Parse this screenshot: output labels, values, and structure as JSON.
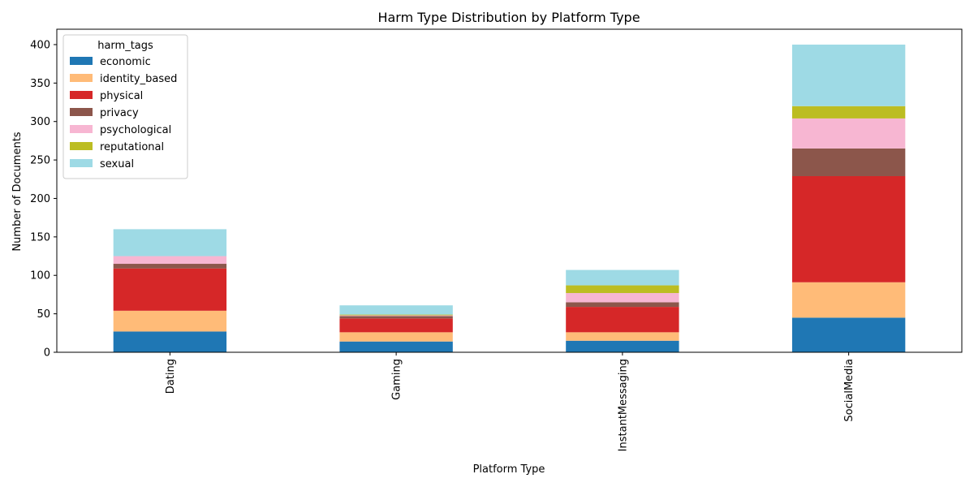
{
  "chart_data": {
    "type": "bar",
    "stacked": true,
    "title": "Harm Type Distribution by Platform Type",
    "xlabel": "Platform Type",
    "ylabel": "Number of Documents",
    "ylim": [
      0,
      420
    ],
    "yticks": [
      0,
      50,
      100,
      150,
      200,
      250,
      300,
      350,
      400
    ],
    "grid": false,
    "legend": {
      "title": "harm_tags",
      "placement": "top-left"
    },
    "categories": [
      "Dating",
      "Gaming",
      "InstantMessaging",
      "SocialMedia"
    ],
    "series": [
      {
        "name": "economic",
        "color": "#1f77b4",
        "values": [
          27,
          14,
          15,
          45
        ]
      },
      {
        "name": "identity_based",
        "color": "#ffbb78",
        "values": [
          27,
          12,
          11,
          46
        ]
      },
      {
        "name": "physical",
        "color": "#d62728",
        "values": [
          55,
          18,
          33,
          138
        ]
      },
      {
        "name": "privacy",
        "color": "#8c564b",
        "values": [
          6,
          3,
          6,
          36
        ]
      },
      {
        "name": "psychological",
        "color": "#f7b6d2",
        "values": [
          10,
          1,
          12,
          39
        ]
      },
      {
        "name": "reputational",
        "color": "#bcbd22",
        "values": [
          0,
          1,
          10,
          16
        ]
      },
      {
        "name": "sexual",
        "color": "#9edae5",
        "values": [
          35,
          12,
          20,
          80
        ]
      }
    ]
  }
}
